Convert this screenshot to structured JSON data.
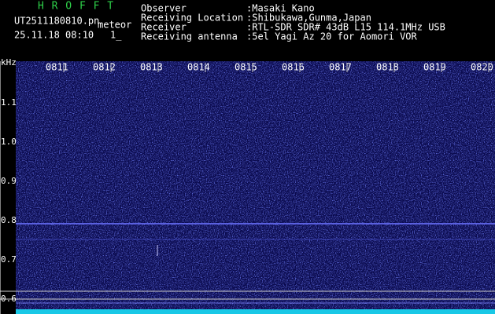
{
  "header": {
    "app": "H R O F F T",
    "file": "UT2511180810.pn",
    "tag": "meteor",
    "datetime": "25.11.18 08:10",
    "index": "1_",
    "fields": [
      {
        "label": "Observer",
        "value": ":Masaki Kano"
      },
      {
        "label": "Receiving Location",
        "value": ":Shibukawa,Gunma,Japan"
      },
      {
        "label": "Receiver",
        "value": ":RTL-SDR SDR# 43dB L15 114.1MHz USB"
      },
      {
        "label": "Receiving antenna",
        "value": ":5el Yagi Az 20 for Aomori VOR"
      }
    ]
  },
  "spectrogram": {
    "unit": "kHz",
    "freq_labels": [
      "1.1",
      "1.0",
      "0.9",
      "0.8",
      "0.7",
      "0.6"
    ],
    "time_labels": [
      "0811",
      "0812",
      "0813",
      "0814",
      "0815",
      "0816",
      "0817",
      "0818",
      "0819",
      "0820"
    ]
  }
}
